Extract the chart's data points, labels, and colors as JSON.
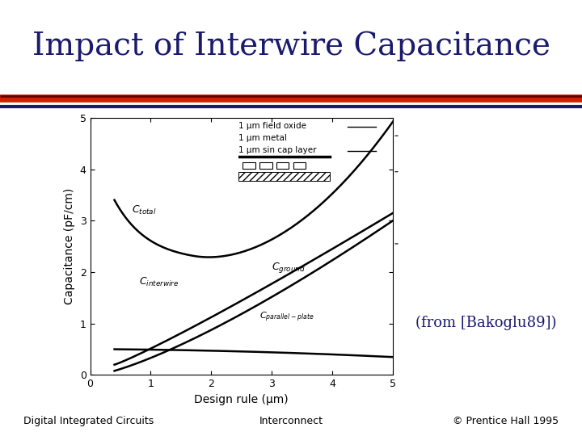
{
  "title": "Impact of Interwire Capacitance",
  "title_color": "#1a1a6e",
  "title_fontsize": 28,
  "title_font": "serif",
  "bg_color": "#ffffff",
  "sep_colors": [
    "#8b0000",
    "#cc2200",
    "#1a1a6e"
  ],
  "sep_linewidths": [
    3,
    6,
    3
  ],
  "footer_left": "Digital Integrated Circuits",
  "footer_center": "Interconnect",
  "footer_right": "© Prentice Hall 1995",
  "footer_fontsize": 9,
  "citation": "(from [Bakoglu89])",
  "citation_fontsize": 13,
  "citation_color": "#1a1a6e",
  "xlabel": "Design rule (µm)",
  "ylabel": "Capacitance (pF/cm)",
  "xlim": [
    0,
    5
  ],
  "ylim": [
    0,
    5
  ],
  "xticks": [
    0,
    1,
    2,
    3,
    4,
    5
  ],
  "yticks": [
    0,
    1,
    2,
    3,
    4,
    5
  ],
  "legend_text1": "1 µm field oxide",
  "legend_text2": "1 µm metal",
  "legend_text3": "1 µm sin cap layer",
  "curve_color": "#000000"
}
